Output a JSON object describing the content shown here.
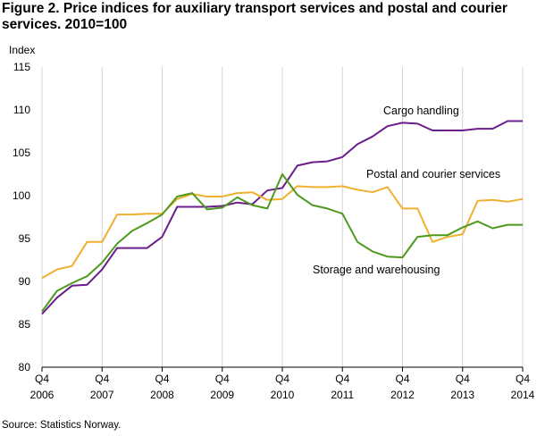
{
  "chart_data": {
    "type": "line",
    "title": "Figure 2. Price indices for auxiliary transport services and postal and courier services. 2010=100",
    "ylabel": "Index",
    "ylim": [
      80,
      115
    ],
    "yticks": [
      80,
      85,
      90,
      95,
      100,
      105,
      110,
      115
    ],
    "xticks": [
      {
        "top": "Q4",
        "bottom": "2006",
        "index": 0
      },
      {
        "top": "Q4",
        "bottom": "2007",
        "index": 4
      },
      {
        "top": "Q4",
        "bottom": "2008",
        "index": 8
      },
      {
        "top": "Q4",
        "bottom": "2009",
        "index": 12
      },
      {
        "top": "Q4",
        "bottom": "2010",
        "index": 16
      },
      {
        "top": "Q4",
        "bottom": "2011",
        "index": 20
      },
      {
        "top": "Q4",
        "bottom": "2012",
        "index": 24
      },
      {
        "top": "Q4",
        "bottom": "2013",
        "index": 28
      },
      {
        "top": "Q4",
        "bottom": "2014",
        "index": 32
      }
    ],
    "grid": "vertical",
    "series": [
      {
        "name": "Cargo handling",
        "color": "#6b1d8a",
        "values": [
          86.2,
          88.1,
          89.5,
          89.6,
          91.4,
          93.9,
          93.9,
          93.9,
          95.2,
          98.7,
          98.7,
          98.7,
          98.8,
          99.2,
          99.0,
          100.6,
          100.9,
          103.5,
          103.9,
          104.0,
          104.5,
          106.0,
          106.9,
          108.1,
          108.5,
          108.4,
          107.6,
          107.6,
          107.6,
          107.8,
          107.8,
          108.7,
          108.7
        ]
      },
      {
        "name": "Postal and courier services",
        "color": "#f0b030",
        "values": [
          90.4,
          91.4,
          91.8,
          94.6,
          94.6,
          97.8,
          97.8,
          97.9,
          97.9,
          99.6,
          100.2,
          99.9,
          99.9,
          100.3,
          100.4,
          99.5,
          99.6,
          101.1,
          101.0,
          101.0,
          101.1,
          100.7,
          100.4,
          101.0,
          98.5,
          98.5,
          94.6,
          95.2,
          95.5,
          99.4,
          99.5,
          99.3,
          99.6
        ]
      },
      {
        "name": "Storage and warehousing",
        "color": "#4e9a1e",
        "values": [
          86.5,
          88.9,
          89.8,
          90.6,
          92.2,
          94.4,
          95.9,
          96.8,
          97.8,
          99.9,
          100.3,
          98.4,
          98.6,
          99.8,
          98.9,
          98.5,
          102.5,
          100.1,
          98.9,
          98.5,
          97.9,
          94.6,
          93.5,
          92.9,
          92.8,
          95.2,
          95.4,
          95.4,
          96.3,
          97.0,
          96.2,
          96.6,
          96.6
        ]
      }
    ],
    "annotations": [
      "Cargo handling",
      "Postal and courier services",
      "Storage and warehousing"
    ]
  },
  "source": "Source: Statistics Norway."
}
